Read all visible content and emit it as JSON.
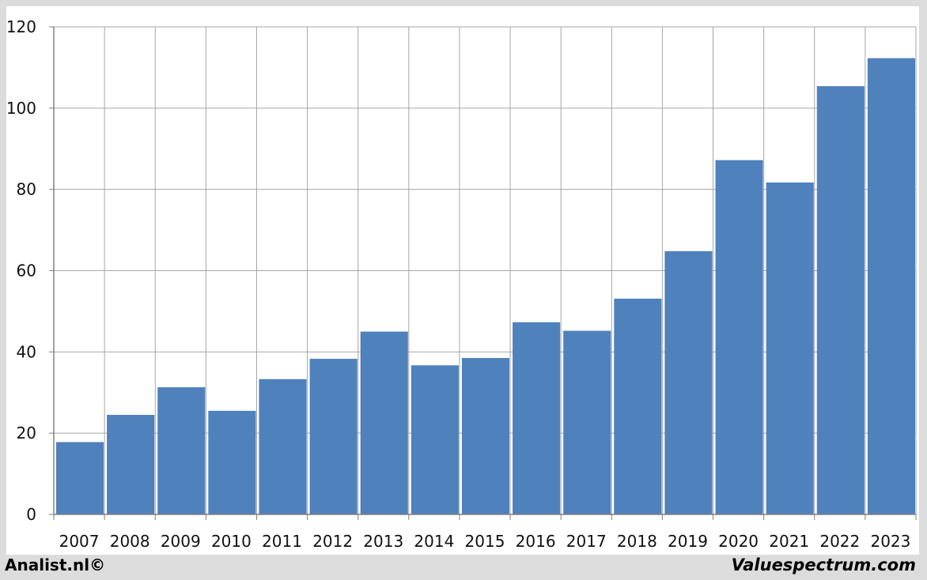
{
  "chart_data": {
    "type": "bar",
    "categories": [
      "2007",
      "2008",
      "2009",
      "2010",
      "2011",
      "2012",
      "2013",
      "2014",
      "2015",
      "2016",
      "2017",
      "2018",
      "2019",
      "2020",
      "2021",
      "2022",
      "2023"
    ],
    "values": [
      17.8,
      24.5,
      31.3,
      25.5,
      33.3,
      38.3,
      45.0,
      36.7,
      38.5,
      47.3,
      45.2,
      53.1,
      64.8,
      87.2,
      81.7,
      105.4,
      112.3
    ],
    "title": "",
    "xlabel": "",
    "ylabel": "",
    "ylim": [
      0,
      120
    ],
    "yticks": [
      "0",
      "20",
      "40",
      "60",
      "80",
      "100",
      "120"
    ],
    "grid": true,
    "bar_color": "#4f81bd",
    "grid_color": "#a6a6a6"
  },
  "footer": {
    "left_text": "Analist.nl©",
    "right_text": "Valuespectrum.com"
  }
}
